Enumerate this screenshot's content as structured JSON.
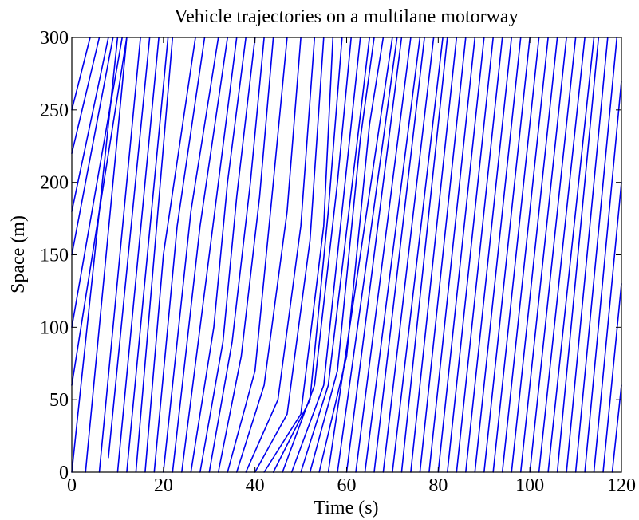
{
  "chart_data": {
    "type": "line",
    "title": "Vehicle trajectories on a multilane motorway",
    "xlabel": "Time (s)",
    "ylabel": "Space (m)",
    "xlim": [
      0,
      120
    ],
    "ylim": [
      0,
      300
    ],
    "xticks": [
      0,
      20,
      40,
      60,
      80,
      100,
      120
    ],
    "yticks": [
      0,
      50,
      100,
      150,
      200,
      250,
      300
    ],
    "grid": false,
    "line_color": "#0000ee",
    "series": [
      {
        "x": [
          0,
          4
        ],
        "y": [
          250,
          300
        ]
      },
      {
        "x": [
          0,
          6
        ],
        "y": [
          220,
          300
        ]
      },
      {
        "x": [
          0,
          8
        ],
        "y": [
          180,
          300
        ]
      },
      {
        "x": [
          0,
          9
        ],
        "y": [
          150,
          300
        ]
      },
      {
        "x": [
          0,
          11
        ],
        "y": [
          100,
          300
        ]
      },
      {
        "x": [
          0,
          12
        ],
        "y": [
          60,
          300
        ]
      },
      {
        "x": [
          0,
          10
        ],
        "y": [
          0,
          300
        ]
      },
      {
        "x": [
          3,
          12
        ],
        "y": [
          0,
          300
        ]
      },
      {
        "x": [
          6,
          15
        ],
        "y": [
          0,
          300
        ]
      },
      {
        "x": [
          8,
          17
        ],
        "y": [
          10,
          300
        ]
      },
      {
        "x": [
          10,
          19
        ],
        "y": [
          0,
          300
        ]
      },
      {
        "x": [
          12,
          21
        ],
        "y": [
          0,
          300
        ]
      },
      {
        "x": [
          14,
          22
        ],
        "y": [
          0,
          300
        ]
      },
      {
        "x": [
          16,
          20,
          27
        ],
        "y": [
          0,
          150,
          300
        ]
      },
      {
        "x": [
          18,
          23,
          29
        ],
        "y": [
          0,
          170,
          300
        ]
      },
      {
        "x": [
          20,
          26,
          32
        ],
        "y": [
          0,
          180,
          300
        ]
      },
      {
        "x": [
          22,
          28,
          34
        ],
        "y": [
          0,
          170,
          300
        ]
      },
      {
        "x": [
          24,
          30,
          36
        ],
        "y": [
          0,
          150,
          300
        ]
      },
      {
        "x": [
          26,
          31,
          34,
          38
        ],
        "y": [
          0,
          100,
          200,
          300
        ]
      },
      {
        "x": [
          28,
          33,
          36,
          40
        ],
        "y": [
          0,
          90,
          190,
          300
        ]
      },
      {
        "x": [
          30,
          35,
          39,
          42
        ],
        "y": [
          0,
          90,
          200,
          300
        ]
      },
      {
        "x": [
          32,
          37,
          41,
          44
        ],
        "y": [
          0,
          80,
          190,
          300
        ]
      },
      {
        "x": [
          34,
          40,
          44,
          47
        ],
        "y": [
          0,
          70,
          200,
          300
        ]
      },
      {
        "x": [
          36,
          42,
          47,
          50
        ],
        "y": [
          0,
          60,
          180,
          300
        ]
      },
      {
        "x": [
          38,
          45,
          50,
          53
        ],
        "y": [
          0,
          50,
          170,
          300
        ]
      },
      {
        "x": [
          40,
          47,
          52,
          55
        ],
        "y": [
          0,
          40,
          160,
          300
        ]
      },
      {
        "x": [
          42,
          50,
          55,
          57
        ],
        "y": [
          0,
          40,
          170,
          300
        ]
      },
      {
        "x": [
          44,
          52,
          56,
          59
        ],
        "y": [
          0,
          50,
          180,
          300
        ]
      },
      {
        "x": [
          46,
          53,
          58,
          61
        ],
        "y": [
          0,
          60,
          200,
          300
        ]
      },
      {
        "x": [
          48,
          55,
          60,
          63
        ],
        "y": [
          0,
          60,
          210,
          300
        ]
      },
      {
        "x": [
          50,
          56,
          62,
          65
        ],
        "y": [
          0,
          60,
          220,
          300
        ]
      },
      {
        "x": [
          52,
          58,
          63,
          66
        ],
        "y": [
          0,
          70,
          230,
          300
        ]
      },
      {
        "x": [
          54,
          60,
          65,
          68
        ],
        "y": [
          0,
          80,
          240,
          300
        ]
      },
      {
        "x": [
          56,
          63,
          70
        ],
        "y": [
          0,
          150,
          300
        ]
      },
      {
        "x": [
          58,
          65,
          71
        ],
        "y": [
          0,
          160,
          300
        ]
      },
      {
        "x": [
          60,
          66,
          72
        ],
        "y": [
          0,
          150,
          300
        ]
      },
      {
        "x": [
          62,
          74
        ],
        "y": [
          0,
          300
        ]
      },
      {
        "x": [
          64,
          76
        ],
        "y": [
          0,
          300
        ]
      },
      {
        "x": [
          66,
          77
        ],
        "y": [
          0,
          300
        ]
      },
      {
        "x": [
          68,
          79
        ],
        "y": [
          0,
          300
        ]
      },
      {
        "x": [
          70,
          81
        ],
        "y": [
          0,
          300
        ]
      },
      {
        "x": [
          72,
          82
        ],
        "y": [
          0,
          300
        ]
      },
      {
        "x": [
          74,
          84
        ],
        "y": [
          0,
          300
        ]
      },
      {
        "x": [
          76,
          86
        ],
        "y": [
          0,
          300
        ]
      },
      {
        "x": [
          78,
          88
        ],
        "y": [
          0,
          300
        ]
      },
      {
        "x": [
          80,
          90
        ],
        "y": [
          0,
          300
        ]
      },
      {
        "x": [
          82,
          92
        ],
        "y": [
          0,
          300
        ]
      },
      {
        "x": [
          84,
          94
        ],
        "y": [
          0,
          300
        ]
      },
      {
        "x": [
          86,
          96
        ],
        "y": [
          0,
          300
        ]
      },
      {
        "x": [
          88,
          98
        ],
        "y": [
          0,
          300
        ]
      },
      {
        "x": [
          90,
          100
        ],
        "y": [
          0,
          300
        ]
      },
      {
        "x": [
          92,
          102
        ],
        "y": [
          0,
          300
        ]
      },
      {
        "x": [
          94,
          104
        ],
        "y": [
          0,
          300
        ]
      },
      {
        "x": [
          96,
          106
        ],
        "y": [
          0,
          300
        ]
      },
      {
        "x": [
          98,
          108
        ],
        "y": [
          0,
          300
        ]
      },
      {
        "x": [
          100,
          110
        ],
        "y": [
          0,
          300
        ]
      },
      {
        "x": [
          102,
          112
        ],
        "y": [
          0,
          300
        ]
      },
      {
        "x": [
          104,
          114
        ],
        "y": [
          0,
          300
        ]
      },
      {
        "x": [
          106,
          115
        ],
        "y": [
          0,
          300
        ]
      },
      {
        "x": [
          108,
          117
        ],
        "y": [
          0,
          300
        ]
      },
      {
        "x": [
          110,
          119
        ],
        "y": [
          0,
          300
        ]
      },
      {
        "x": [
          112,
          120
        ],
        "y": [
          0,
          270
        ]
      },
      {
        "x": [
          114,
          120
        ],
        "y": [
          0,
          200
        ]
      },
      {
        "x": [
          116,
          120
        ],
        "y": [
          0,
          130
        ]
      },
      {
        "x": [
          118,
          120
        ],
        "y": [
          0,
          60
        ]
      }
    ]
  }
}
